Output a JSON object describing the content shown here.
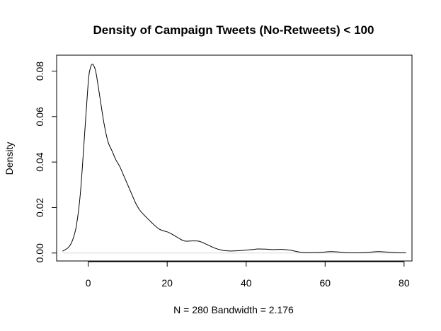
{
  "chart_data": {
    "type": "line",
    "title": "Density of Campaign Tweets (No-Retweets) < 100",
    "xlabel": "N = 280   Bandwidth = 2.176",
    "ylabel": "Density",
    "xlim": [
      -8,
      82
    ],
    "ylim": [
      -0.0035,
      0.087
    ],
    "xticks": [
      0,
      20,
      40,
      60,
      80
    ],
    "yticks": [
      0.0,
      0.02,
      0.04,
      0.06,
      0.08
    ],
    "xtick_labels": [
      "0",
      "20",
      "40",
      "60",
      "80"
    ],
    "ytick_labels": [
      "0.00",
      "0.02",
      "0.04",
      "0.06",
      "0.08"
    ],
    "grid": false,
    "series": [
      {
        "x": [
          -6.5,
          -5,
          -4,
          -3,
          -2,
          -1,
          0,
          0.5,
          1,
          1.5,
          2,
          3,
          4,
          5,
          6,
          7,
          8,
          9,
          10,
          11,
          12,
          13,
          14,
          16,
          18,
          20,
          21,
          22,
          24,
          25,
          26,
          28,
          30,
          32,
          34,
          36,
          38,
          40,
          42,
          43,
          45,
          47,
          49,
          51,
          53,
          55,
          57,
          59,
          61,
          63,
          65,
          67,
          69,
          71,
          73,
          74,
          76,
          78,
          80.5
        ],
        "y": [
          0.0008,
          0.0025,
          0.0055,
          0.012,
          0.026,
          0.05,
          0.075,
          0.081,
          0.083,
          0.082,
          0.079,
          0.068,
          0.057,
          0.049,
          0.045,
          0.041,
          0.038,
          0.034,
          0.03,
          0.026,
          0.022,
          0.019,
          0.017,
          0.0135,
          0.0105,
          0.0093,
          0.0085,
          0.0075,
          0.0055,
          0.0052,
          0.0053,
          0.0052,
          0.0038,
          0.0022,
          0.0012,
          0.0009,
          0.001,
          0.0013,
          0.0016,
          0.0018,
          0.0017,
          0.0015,
          0.0016,
          0.0013,
          0.0006,
          0.0002,
          0.0002,
          0.0003,
          0.0006,
          0.0005,
          0.0002,
          0.0001,
          0.0001,
          0.0003,
          0.0006,
          0.0006,
          0.0004,
          0.0002,
          0.0001
        ]
      }
    ]
  }
}
